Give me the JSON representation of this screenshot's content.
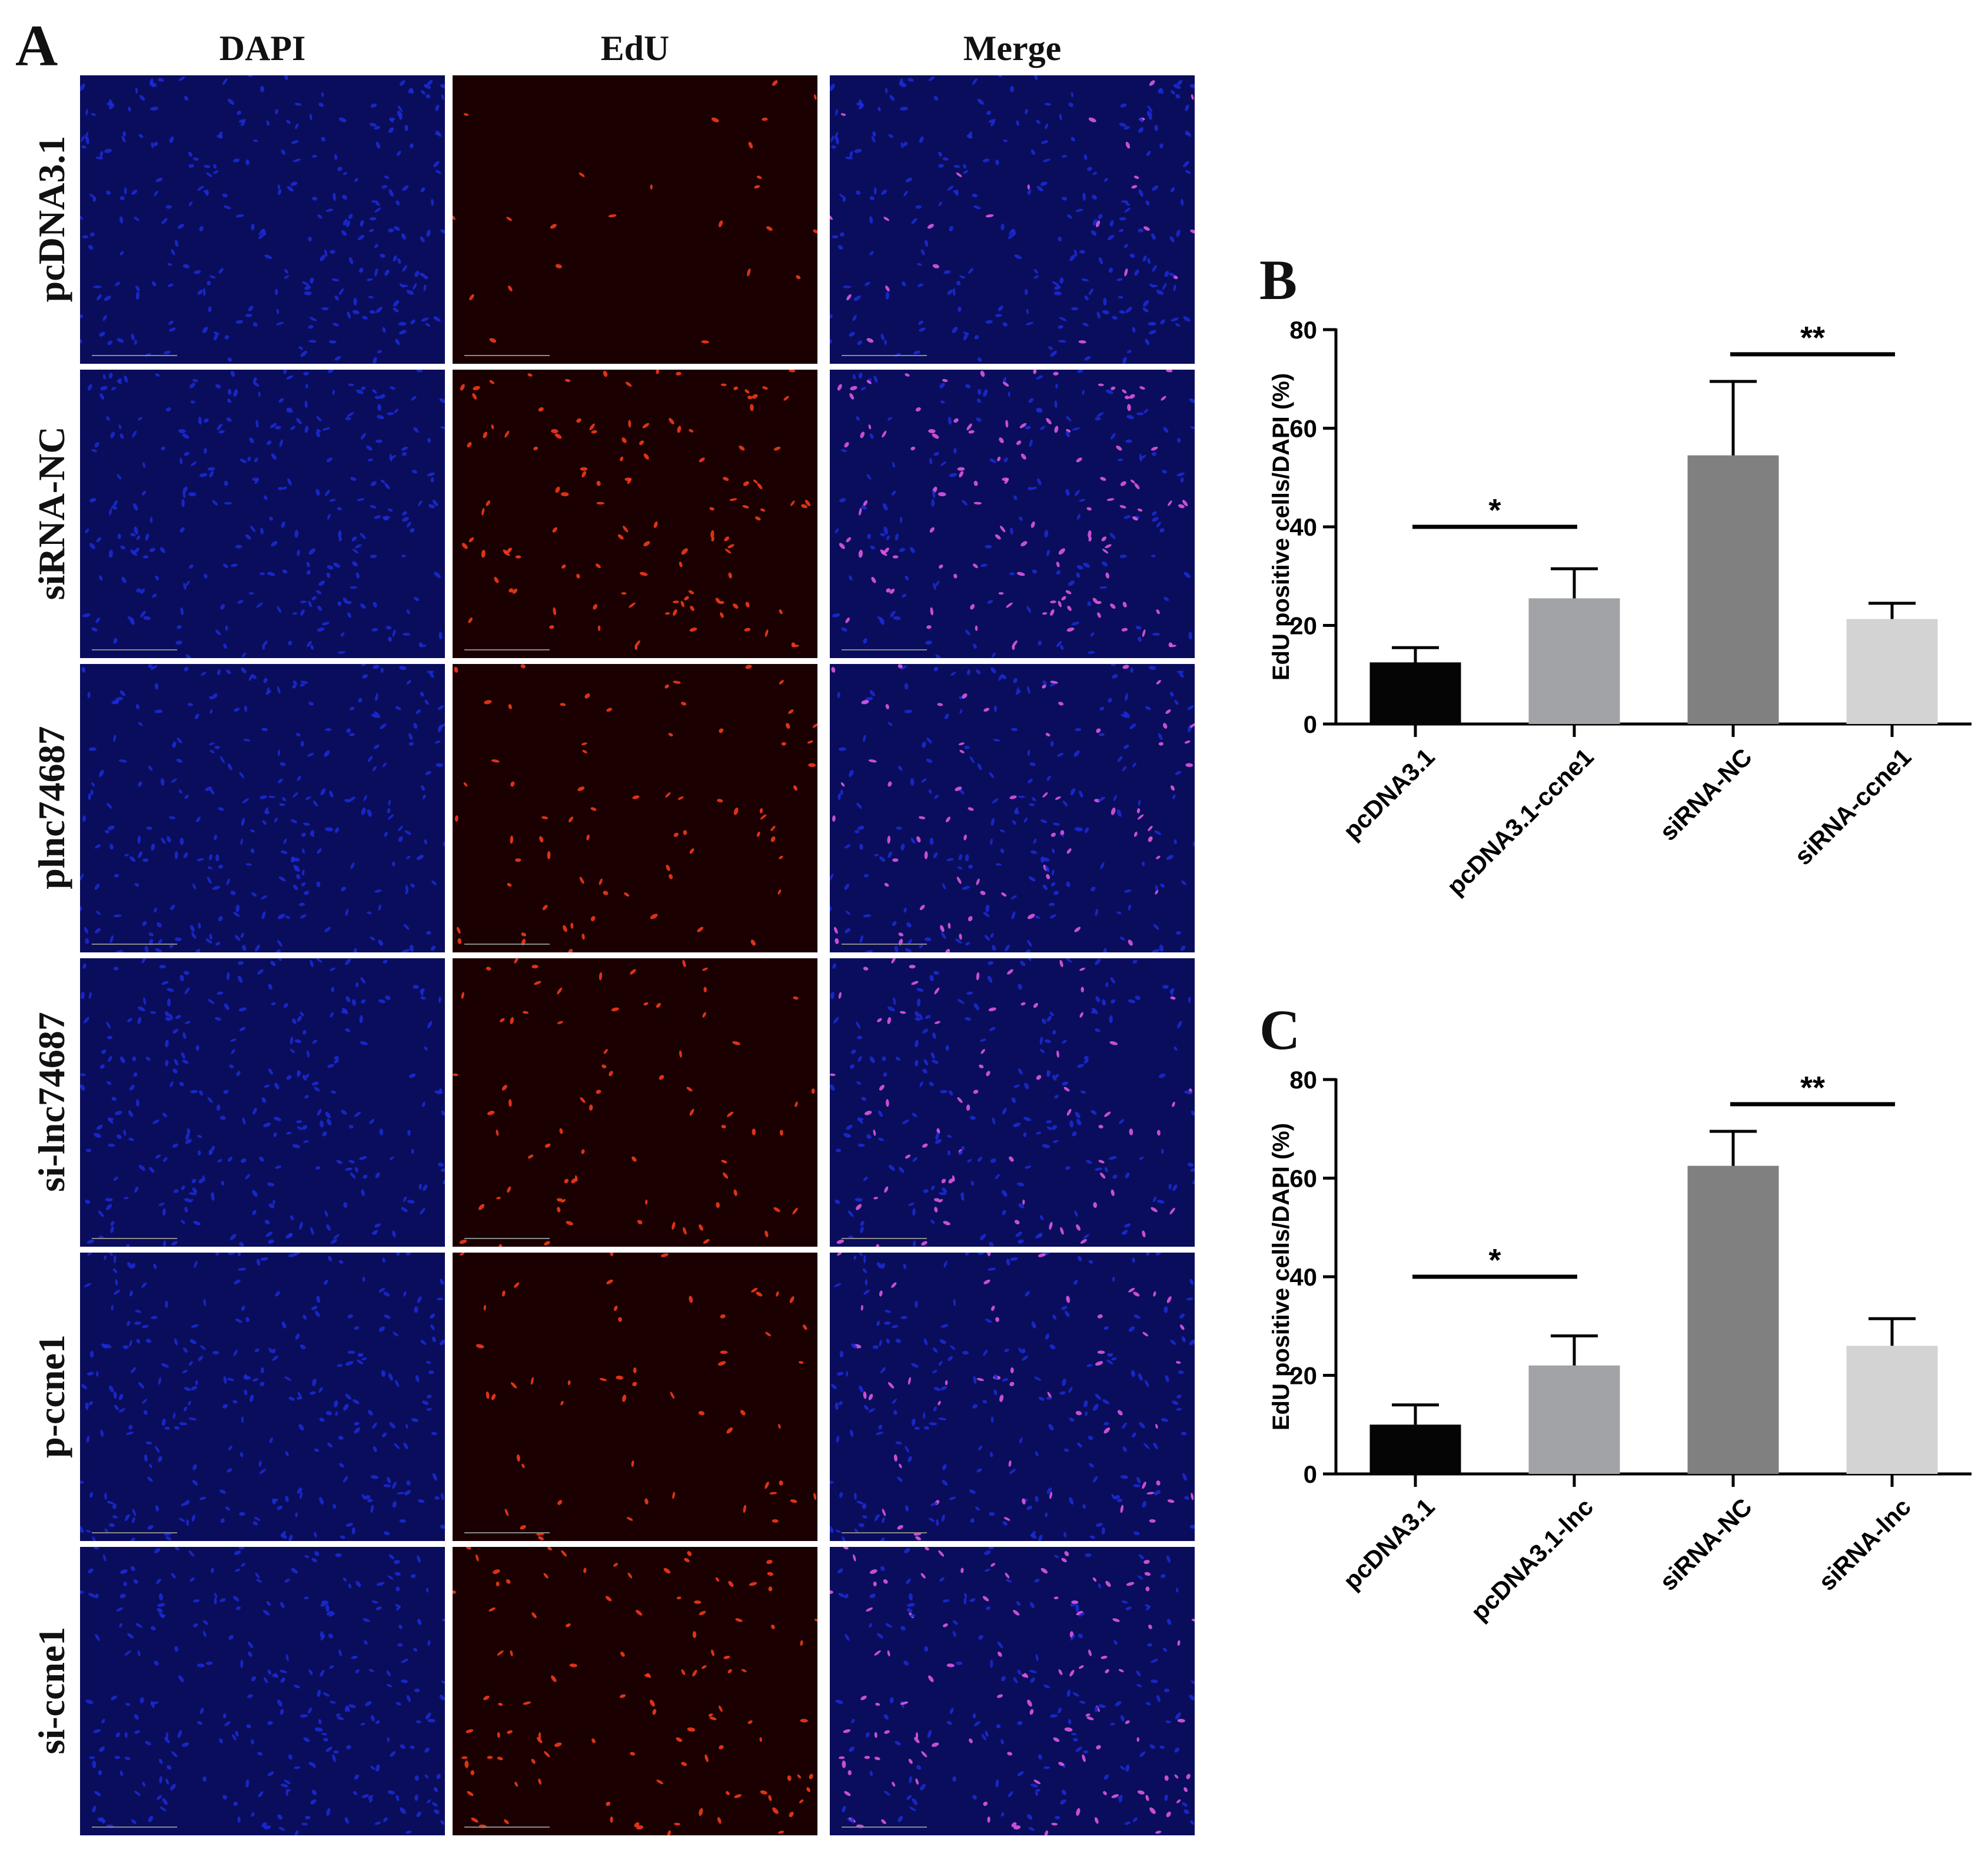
{
  "panel_a": {
    "letter": "A",
    "columns": [
      "DAPI",
      "EdU",
      "Merge"
    ],
    "rows": [
      "pcDNA3.1",
      "siRNA-NC",
      "plnc74687",
      "si-lnc74687",
      "p-ccne1",
      "si-ccne1"
    ],
    "edu_intensity": [
      0.15,
      0.85,
      0.55,
      0.55,
      0.35,
      0.7
    ],
    "colors": {
      "dapi": "#1b2bd6",
      "edu": "#ff3b1a",
      "merge": "#e85ce8"
    }
  },
  "chart_data": [
    {
      "panel": "B",
      "type": "bar",
      "ylabel": "EdU positive cells/DAPI (%)",
      "ylim": [
        0,
        80
      ],
      "yticks": [
        0,
        20,
        40,
        60,
        80
      ],
      "categories": [
        "pcDNA3.1",
        "pcDNA3.1-ccne1",
        "siRNA-NC",
        "siRNA-ccne1"
      ],
      "values": [
        12.5,
        25.5,
        54.5,
        21.3
      ],
      "errors": [
        3,
        6,
        15,
        3.2
      ],
      "colors": [
        "#050505",
        "#a2a3a7",
        "#808080",
        "#d3d3d3"
      ],
      "significance": [
        {
          "from": 0,
          "to": 1,
          "y": 40,
          "label": "*"
        },
        {
          "from": 2,
          "to": 3,
          "y": 75,
          "label": "**"
        }
      ]
    },
    {
      "panel": "C",
      "type": "bar",
      "ylabel": "EdU positive cells/DAPI (%)",
      "ylim": [
        0,
        80
      ],
      "yticks": [
        0,
        20,
        40,
        60,
        80
      ],
      "categories": [
        "pcDNA3.1",
        "pcDNA3.1-lnc",
        "siRNA-NC",
        "siRNA-lnc"
      ],
      "values": [
        10,
        22,
        62.5,
        26
      ],
      "errors": [
        4,
        6,
        7,
        5.5
      ],
      "colors": [
        "#050505",
        "#a2a3a7",
        "#808080",
        "#d3d3d3"
      ],
      "significance": [
        {
          "from": 0,
          "to": 1,
          "y": 40,
          "label": "*"
        },
        {
          "from": 2,
          "to": 3,
          "y": 75,
          "label": "**"
        }
      ]
    }
  ]
}
